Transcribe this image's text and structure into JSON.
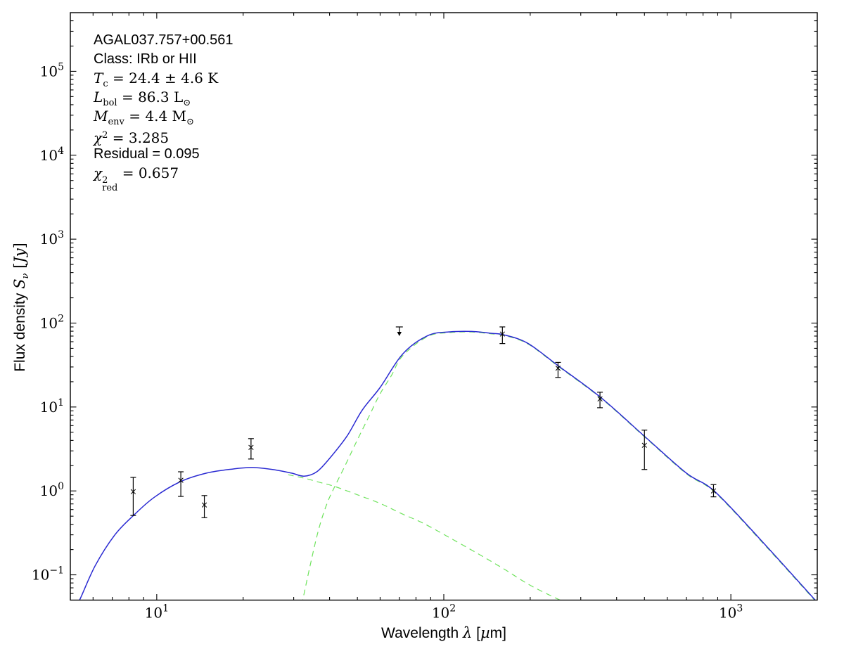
{
  "annotation": {
    "lines": [
      {
        "font": "sans",
        "parts": [
          {
            "t": "AGAL037.757+00.561"
          }
        ]
      },
      {
        "font": "sans",
        "parts": [
          {
            "t": "Class: IRb or HII"
          }
        ]
      },
      {
        "font": "serif",
        "parts": [
          {
            "t": "T",
            "s": "i"
          },
          {
            "t": "c",
            "s": "sb"
          },
          {
            "t": " = 24.4 ± 4.6 K",
            "s": "r"
          }
        ]
      },
      {
        "font": "serif",
        "parts": [
          {
            "t": "L",
            "s": "i"
          },
          {
            "t": "bol",
            "s": "sb"
          },
          {
            "t": " = 86.3 L",
            "s": "r"
          },
          {
            "t": "⊙",
            "s": "sb"
          }
        ]
      },
      {
        "font": "serif",
        "parts": [
          {
            "t": "M",
            "s": "i"
          },
          {
            "t": "env",
            "s": "sb"
          },
          {
            "t": " = 4.4 M",
            "s": "r"
          },
          {
            "t": "⊙",
            "s": "sb"
          }
        ]
      },
      {
        "font": "serif",
        "parts": [
          {
            "t": "χ",
            "s": "i"
          },
          {
            "t": "2",
            "s": "sp"
          },
          {
            "t": " = 3.285",
            "s": "r"
          }
        ]
      },
      {
        "font": "sans",
        "parts": [
          {
            "t": "Residual = 0.095"
          }
        ]
      },
      {
        "font": "serif",
        "parts": [
          {
            "t": "χ",
            "s": "i"
          },
          {
            "s": "stack",
            "top": "2",
            "bot": "red"
          },
          {
            "t": " = 0.657",
            "s": "r"
          }
        ]
      }
    ]
  },
  "axes": {
    "xlabel_text": "Wavelength λ [µm]",
    "ylabel_text": "Flux density Sν [Jy]",
    "xlabel_parts": [
      {
        "t": "Wavelength "
      },
      {
        "t": "λ",
        "s": "i"
      },
      {
        "t": " ["
      },
      {
        "t": "µ",
        "s": "i"
      },
      {
        "t": "m]"
      }
    ],
    "ylabel_parts": [
      {
        "t": "Flux density "
      },
      {
        "t": "S",
        "s": "i"
      },
      {
        "t": "ν",
        "s": "sbi"
      },
      {
        "t": " [",
        "s": "r"
      },
      {
        "t": "Jy",
        "s": "i"
      },
      {
        "t": "]",
        "s": "r"
      }
    ],
    "tick_base": "10",
    "x_tick_exponents": [
      1,
      2,
      3
    ],
    "y_tick_exponents": [
      -1,
      0,
      1,
      2,
      3,
      4,
      5
    ],
    "xlim": [
      5,
      2000
    ],
    "ylim": [
      0.05,
      500000
    ],
    "x_scale": "log",
    "y_scale": "log",
    "grid": false
  },
  "colors": {
    "total_model": "#2a2ad2",
    "components": "#6fe35d",
    "data": "#000000",
    "frame": "#000000"
  },
  "chart_data": {
    "type": "line",
    "title": "",
    "xlabel": "Wavelength λ [µm]",
    "ylabel": "Flux density Sν [Jy]",
    "xlim": [
      5,
      2000
    ],
    "ylim": [
      0.05,
      500000
    ],
    "legend": "none",
    "series": [
      {
        "name": "total-model-fit",
        "color_key": "total_model",
        "style": "solid",
        "width": 1.5,
        "points": [
          [
            5.2,
            0.042
          ],
          [
            5.4,
            0.051
          ],
          [
            6.1,
            0.128
          ],
          [
            7.15,
            0.3
          ],
          [
            8.35,
            0.52
          ],
          [
            9.8,
            0.84
          ],
          [
            12.1,
            1.29
          ],
          [
            14.9,
            1.63
          ],
          [
            18.3,
            1.82
          ],
          [
            21.6,
            1.9
          ],
          [
            25.6,
            1.79
          ],
          [
            29.5,
            1.63
          ],
          [
            32.6,
            1.5
          ],
          [
            36.1,
            1.69
          ],
          [
            40,
            2.44
          ],
          [
            46,
            4.5
          ],
          [
            52,
            9.2
          ],
          [
            60,
            17.1
          ],
          [
            72,
            43
          ],
          [
            88,
            71
          ],
          [
            105,
            78.5
          ],
          [
            125,
            79.5
          ],
          [
            147,
            75.5
          ],
          [
            162,
            72.5
          ],
          [
            196,
            57.5
          ],
          [
            252,
            30.5
          ],
          [
            354,
            12.8
          ],
          [
            505,
            4.35
          ],
          [
            700,
            1.63
          ],
          [
            883,
            0.97
          ],
          [
            1330,
            0.22
          ],
          [
            2000,
            0.047
          ]
        ]
      },
      {
        "name": "warm-component",
        "color_key": "components",
        "style": "dashed",
        "width": 1.2,
        "points": [
          [
            28.7,
            1.56
          ],
          [
            32.6,
            1.42
          ],
          [
            36.8,
            1.27
          ],
          [
            41.7,
            1.13
          ],
          [
            50,
            0.9
          ],
          [
            60,
            0.71
          ],
          [
            71,
            0.54
          ],
          [
            85,
            0.41
          ],
          [
            105,
            0.276
          ],
          [
            131,
            0.18
          ],
          [
            163,
            0.116
          ],
          [
            203,
            0.073
          ],
          [
            275,
            0.044
          ]
        ]
      },
      {
        "name": "cold-component",
        "color_key": "components",
        "style": "dashed",
        "width": 1.2,
        "points": [
          [
            32,
            0.044
          ],
          [
            34.4,
            0.14
          ],
          [
            36.7,
            0.354
          ],
          [
            39.2,
            0.71
          ],
          [
            41.7,
            1.13
          ],
          [
            45.3,
            2.0
          ],
          [
            49.7,
            3.9
          ],
          [
            54.9,
            7.75
          ],
          [
            60,
            14.4
          ],
          [
            65.7,
            23.7
          ],
          [
            72,
            41
          ],
          [
            88,
            69.5
          ],
          [
            105,
            77
          ],
          [
            125,
            78.2
          ],
          [
            147,
            74.3
          ],
          [
            162,
            71.4
          ],
          [
            196,
            56.6
          ],
          [
            252,
            30
          ],
          [
            354,
            12.6
          ],
          [
            505,
            4.28
          ],
          [
            700,
            1.6
          ],
          [
            883,
            0.95
          ],
          [
            1330,
            0.215
          ],
          [
            2000,
            0.046
          ]
        ]
      }
    ],
    "data_points": [
      {
        "wavelength_um": 8.28,
        "flux_jy": 0.98,
        "err_hi_jy": 1.45,
        "err_lo_jy": 0.51
      },
      {
        "wavelength_um": 12.13,
        "flux_jy": 1.34,
        "err_hi_jy": 1.69,
        "err_lo_jy": 0.86
      },
      {
        "wavelength_um": 14.65,
        "flux_jy": 0.68,
        "err_hi_jy": 0.88,
        "err_lo_jy": 0.48
      },
      {
        "wavelength_um": 21.3,
        "flux_jy": 3.3,
        "err_hi_jy": 4.2,
        "err_lo_jy": 2.4
      },
      {
        "wavelength_um": 160,
        "flux_jy": 74,
        "err_hi_jy": 90,
        "err_lo_jy": 57
      },
      {
        "wavelength_um": 250,
        "flux_jy": 29,
        "err_hi_jy": 34,
        "err_lo_jy": 22.5
      },
      {
        "wavelength_um": 350,
        "flux_jy": 12.5,
        "err_hi_jy": 15,
        "err_lo_jy": 9.8
      },
      {
        "wavelength_um": 500,
        "flux_jy": 3.5,
        "err_hi_jy": 5.3,
        "err_lo_jy": 1.8
      },
      {
        "wavelength_um": 870,
        "flux_jy": 1.0,
        "err_hi_jy": 1.19,
        "err_lo_jy": 0.85
      }
    ],
    "upper_limits": [
      {
        "wavelength_um": 70,
        "flux_jy": 90
      }
    ]
  }
}
